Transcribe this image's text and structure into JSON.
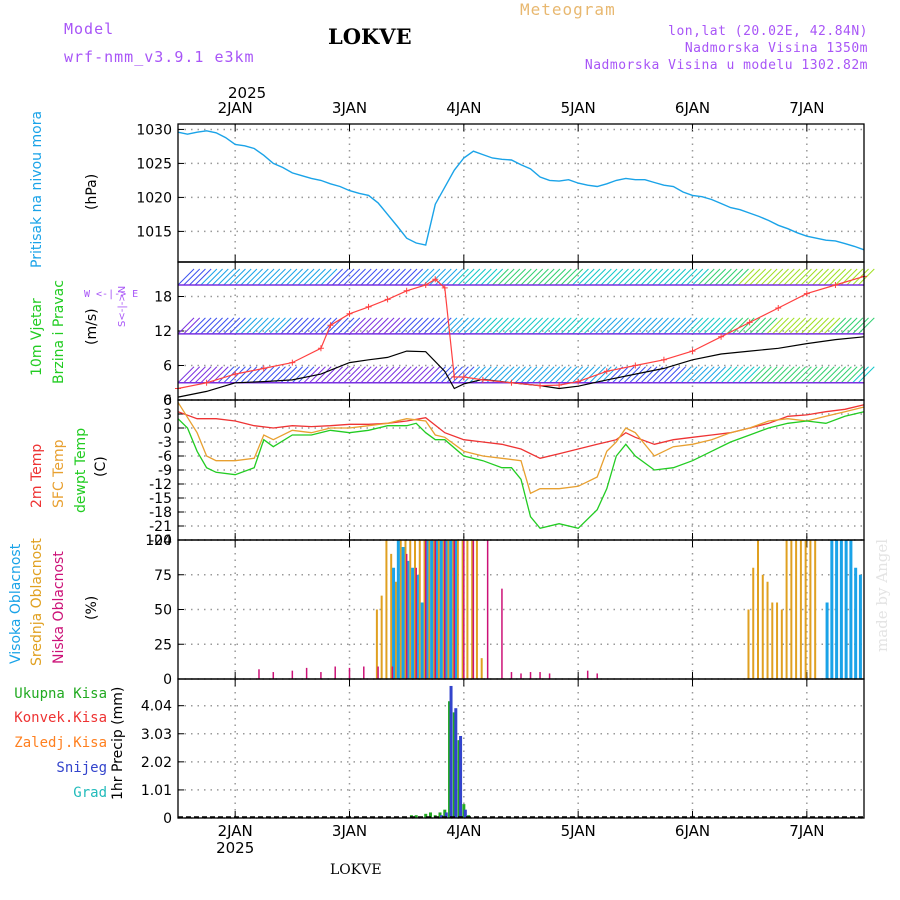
{
  "header": {
    "model_label": "Model",
    "model_name": "wrf-nmm_v3.9.1 e3km",
    "station": "LOKVE",
    "product": "Meteogram",
    "lonlat": "lon,lat (20.02E, 42.84N)",
    "altitude": "Nadmorska Visina 1350m",
    "model_altitude": "Nadmorska Visina u modelu 1302.82m",
    "year_top": "2025",
    "footer_station": "LOKVE",
    "watermark": "made by Angel"
  },
  "colors": {
    "pressure": "#1aa3e8",
    "wind_speed": "#000000",
    "gust": "#ff4040",
    "t2m": "#ee3333",
    "sfc": "#e8a030",
    "dew": "#22cc22",
    "cloud_high": "#1aa3e8",
    "cloud_mid": "#e0a020",
    "cloud_low": "#cc1177",
    "precip_total": "#22aa22",
    "precip_conv": "#ee3333",
    "precip_frz": "#ff8020",
    "snow": "#3344cc",
    "hail": "#22bbbb",
    "grid": "#999999",
    "title_purple": "#a855f7",
    "meteogram_orange": "#e8b870"
  },
  "chart_data": [
    {
      "type": "line",
      "panel": "pressure",
      "title": "Pritisak na nivou mora",
      "ylabel": "(hPa)",
      "ylim": [
        1010.5,
        1030.8
      ],
      "yticks": [
        1015,
        1020,
        1025,
        1030
      ],
      "x_unit": "hours since 2025-01-01 12UTC",
      "xlim": [
        0,
        144
      ],
      "x": [
        0,
        2,
        4,
        6,
        8,
        10,
        12,
        14,
        16,
        18,
        20,
        22,
        24,
        26,
        28,
        30,
        32,
        34,
        36,
        38,
        40,
        42,
        44,
        46,
        48,
        50,
        52,
        54,
        56,
        58,
        60,
        62,
        64,
        66,
        68,
        70,
        72,
        74,
        76,
        78,
        80,
        82,
        84,
        86,
        88,
        90,
        92,
        94,
        96,
        98,
        100,
        102,
        104,
        106,
        108,
        110,
        112,
        114,
        116,
        118,
        120,
        122,
        124,
        126,
        128,
        130,
        132,
        134,
        136,
        138,
        140,
        142,
        144
      ],
      "values": [
        1029.6,
        1029.3,
        1029.6,
        1029.8,
        1029.5,
        1028.8,
        1027.8,
        1027.6,
        1027.2,
        1026.2,
        1025.0,
        1024.4,
        1023.6,
        1023.2,
        1022.8,
        1022.5,
        1022.0,
        1021.6,
        1021.0,
        1020.6,
        1020.3,
        1019.2,
        1017.5,
        1015.8,
        1014.0,
        1013.3,
        1013.0,
        1019.0,
        1021.5,
        1024.0,
        1025.8,
        1026.8,
        1026.3,
        1025.8,
        1025.6,
        1025.5,
        1024.8,
        1024.2,
        1023.0,
        1022.5,
        1022.4,
        1022.6,
        1022.1,
        1021.8,
        1021.6,
        1022.0,
        1022.5,
        1022.8,
        1022.6,
        1022.6,
        1022.2,
        1021.8,
        1021.6,
        1020.8,
        1020.3,
        1020.1,
        1019.7,
        1019.1,
        1018.5,
        1018.2,
        1017.7,
        1017.2,
        1016.6,
        1015.9,
        1015.4,
        1014.8,
        1014.3,
        1014.0,
        1013.7,
        1013.6,
        1013.2,
        1012.8,
        1012.3
      ]
    },
    {
      "type": "line",
      "panel": "wind",
      "title": "10m Vjetar Brzina i Pravac",
      "ylabel": "(m/s)",
      "ylim": [
        0,
        24
      ],
      "yticks": [
        0,
        6,
        12,
        18
      ],
      "xlim": [
        0,
        144
      ],
      "direction_legend": "W <-|-> E",
      "series": [
        {
          "name": "Brzina",
          "x": [
            0,
            6,
            12,
            18,
            24,
            30,
            36,
            40,
            44,
            48,
            52,
            56,
            58,
            60,
            64,
            70,
            76,
            80,
            84,
            90,
            96,
            102,
            108,
            114,
            120,
            126,
            132,
            138,
            144
          ],
          "values": [
            0.5,
            1.5,
            3.0,
            3.2,
            3.5,
            4.5,
            6.5,
            7.0,
            7.4,
            8.5,
            8.4,
            5.0,
            2.0,
            2.8,
            3.6,
            3.0,
            2.5,
            2.0,
            2.4,
            3.5,
            4.5,
            5.5,
            7.0,
            8.0,
            8.5,
            9.0,
            9.8,
            10.5,
            11.0
          ]
        },
        {
          "name": "Udari",
          "x": [
            0,
            6,
            12,
            18,
            24,
            30,
            32,
            36,
            40,
            44,
            48,
            52,
            54,
            56,
            58,
            60,
            64,
            70,
            76,
            80,
            84,
            90,
            96,
            102,
            108,
            114,
            120,
            126,
            132,
            138,
            144
          ],
          "values": [
            2.0,
            3.0,
            4.5,
            5.5,
            6.5,
            9.0,
            13.0,
            15.0,
            16.2,
            17.5,
            19.0,
            20.0,
            21.0,
            19.5,
            4.0,
            4.0,
            3.5,
            3.0,
            2.5,
            2.6,
            3.2,
            5.0,
            6.0,
            7.0,
            8.5,
            11.0,
            13.5,
            16.0,
            18.5,
            20.0,
            21.5
          ]
        }
      ]
    },
    {
      "type": "line",
      "panel": "temperature",
      "ylabel": "(C)",
      "ylim": [
        -24,
        6
      ],
      "yticks": [
        6,
        3,
        0,
        -3,
        -6,
        -9,
        -12,
        -15,
        -18,
        -21,
        -24
      ],
      "xlim": [
        0,
        144
      ],
      "series": [
        {
          "name": "2m Temp",
          "x": [
            0,
            4,
            8,
            12,
            16,
            20,
            24,
            28,
            32,
            36,
            40,
            44,
            48,
            52,
            56,
            60,
            64,
            68,
            72,
            76,
            80,
            84,
            88,
            90,
            92,
            94,
            96,
            100,
            104,
            108,
            112,
            116,
            120,
            124,
            128,
            132,
            136,
            140,
            144
          ],
          "values": [
            3.5,
            2.0,
            2.0,
            1.5,
            0.5,
            0.0,
            0.5,
            0.3,
            0.5,
            0.8,
            0.8,
            1.0,
            1.5,
            2.2,
            -1.0,
            -2.5,
            -3.0,
            -3.5,
            -4.5,
            -6.5,
            -5.5,
            -4.5,
            -3.5,
            -3.0,
            -2.5,
            -1.0,
            -2.0,
            -3.5,
            -2.5,
            -2.0,
            -1.5,
            -1.0,
            0.0,
            1.0,
            2.5,
            2.8,
            3.5,
            4.0,
            5.0
          ]
        },
        {
          "name": "SFC Temp",
          "x": [
            0,
            4,
            6,
            8,
            12,
            16,
            18,
            20,
            24,
            28,
            32,
            36,
            40,
            44,
            48,
            52,
            54,
            56,
            60,
            64,
            68,
            72,
            74,
            76,
            80,
            84,
            88,
            90,
            92,
            94,
            96,
            100,
            104,
            108,
            112,
            116,
            120,
            124,
            128,
            132,
            136,
            140,
            144
          ],
          "values": [
            5.5,
            -1.0,
            -6.0,
            -7.0,
            -7.0,
            -6.5,
            -1.5,
            -2.5,
            -0.5,
            -1.0,
            0.0,
            0.0,
            0.5,
            1.0,
            2.0,
            1.5,
            -1.5,
            -2.0,
            -5.0,
            -6.0,
            -6.5,
            -7.0,
            -14.0,
            -13.0,
            -13.0,
            -12.5,
            -10.5,
            -5.0,
            -3.0,
            0.0,
            -1.0,
            -6.0,
            -4.0,
            -3.5,
            -2.5,
            -1.0,
            0.0,
            1.5,
            2.0,
            1.5,
            2.5,
            3.5,
            4.5
          ]
        },
        {
          "name": "dewpt Temp",
          "x": [
            0,
            2,
            4,
            6,
            8,
            12,
            16,
            18,
            20,
            24,
            28,
            32,
            36,
            40,
            44,
            48,
            50,
            52,
            54,
            56,
            60,
            64,
            68,
            70,
            72,
            74,
            76,
            80,
            84,
            88,
            90,
            92,
            94,
            96,
            100,
            104,
            108,
            112,
            116,
            120,
            124,
            128,
            132,
            136,
            140,
            144
          ],
          "values": [
            2.0,
            0.0,
            -5.0,
            -8.5,
            -9.5,
            -10.0,
            -8.5,
            -2.5,
            -4.0,
            -1.5,
            -1.5,
            -0.5,
            -1.0,
            -0.5,
            0.5,
            0.5,
            1.0,
            -1.0,
            -2.5,
            -2.5,
            -6.0,
            -7.0,
            -8.5,
            -8.5,
            -11.0,
            -19.0,
            -21.5,
            -20.5,
            -21.5,
            -17.5,
            -13.0,
            -6.0,
            -3.5,
            -6.0,
            -9.0,
            -8.5,
            -7.0,
            -5.0,
            -3.0,
            -1.5,
            0.0,
            1.0,
            1.5,
            1.0,
            2.5,
            3.5
          ]
        }
      ]
    },
    {
      "type": "bar",
      "panel": "clouds",
      "ylabel": "(%)",
      "ylim": [
        0,
        100
      ],
      "yticks": [
        0,
        25,
        50,
        75,
        100
      ],
      "xlim": [
        0,
        144
      ],
      "series": [
        {
          "name": "Visoka Oblacnost",
          "x": [
            45,
            46,
            47,
            48,
            49,
            50,
            51,
            52,
            53,
            54,
            55,
            56,
            57,
            58,
            59,
            60,
            61,
            62,
            63,
            135,
            136,
            137,
            138,
            139,
            140,
            141,
            142,
            143
          ],
          "values": [
            80,
            100,
            95,
            85,
            80,
            75,
            55,
            100,
            100,
            100,
            100,
            100,
            100,
            100,
            0,
            0,
            0,
            0,
            0,
            0,
            55,
            100,
            100,
            100,
            100,
            100,
            80,
            75
          ]
        },
        {
          "name": "Srednja Oblacnost",
          "x": [
            42,
            43,
            44,
            45,
            46,
            47,
            48,
            49,
            50,
            51,
            52,
            53,
            54,
            55,
            56,
            57,
            58,
            59,
            60,
            61,
            62,
            63,
            64,
            120,
            121,
            122,
            123,
            124,
            125,
            126,
            127,
            128,
            129,
            130,
            131,
            132,
            133,
            134
          ],
          "values": [
            50,
            60,
            100,
            90,
            70,
            100,
            100,
            100,
            100,
            100,
            100,
            100,
            100,
            100,
            100,
            100,
            100,
            100,
            100,
            100,
            100,
            100,
            15,
            50,
            80,
            100,
            75,
            70,
            55,
            55,
            50,
            100,
            100,
            100,
            100,
            100,
            100,
            100
          ]
        },
        {
          "name": "Niska Oblacnost",
          "x": [
            17,
            20,
            24,
            27,
            30,
            33,
            36,
            39,
            42,
            45,
            48,
            50,
            52,
            54,
            56,
            58,
            60,
            62,
            65,
            68,
            70,
            72,
            74,
            76,
            78,
            86,
            88
          ],
          "values": [
            7,
            5,
            6,
            8,
            5,
            9,
            8,
            9,
            9,
            9,
            90,
            80,
            100,
            100,
            100,
            100,
            100,
            100,
            100,
            65,
            5,
            4,
            5,
            5,
            4,
            6,
            4
          ]
        }
      ]
    },
    {
      "type": "bar",
      "panel": "precipitation",
      "ylabel": "1hr Precip (mm)",
      "ylim": [
        0,
        5.0
      ],
      "yticks": [
        0,
        1.01,
        2.02,
        3.03,
        4.04
      ],
      "xlim": [
        0,
        144
      ],
      "series": [
        {
          "name": "Ukupna Kisa",
          "x": [
            49,
            50,
            51,
            52,
            53,
            54,
            55,
            56,
            57,
            58,
            59,
            60,
            61
          ],
          "values": [
            0.1,
            0.1,
            0.05,
            0.15,
            0.2,
            0.1,
            0.2,
            0.3,
            4.2,
            3.8,
            2.8,
            0.5,
            0.1
          ]
        },
        {
          "name": "Konvek.Kisa",
          "x": [],
          "values": []
        },
        {
          "name": "Zaledj.Kisa",
          "x": [],
          "values": []
        },
        {
          "name": "Snijeg",
          "x": [
            55,
            56,
            57,
            58,
            59,
            60
          ],
          "values": [
            0.1,
            0.2,
            4.75,
            3.95,
            2.95,
            0.3
          ]
        },
        {
          "name": "Grad",
          "x": [],
          "values": []
        }
      ]
    }
  ],
  "time_axis": {
    "labels": [
      "2JAN",
      "3JAN",
      "4JAN",
      "5JAN",
      "6JAN",
      "7JAN"
    ],
    "bottom_year": "2025"
  },
  "panel_labels": {
    "pressure_title": "Pritisak na nivou mora",
    "pressure_unit": "(hPa)",
    "wind_title_1": "10m Vjetar",
    "wind_title_2": "Brzina i Pravac",
    "wind_unit": "(m/s)",
    "wind_dir_ns": "S<-|->N",
    "wind_dir_we": "W <-|-> E",
    "temp_1": "2m Temp",
    "temp_2": "SFC Temp",
    "temp_3": "dewpt Temp",
    "temp_unit": "(C)",
    "cloud_1": "Visoka Oblacnost",
    "cloud_2": "Srednja Oblacnost",
    "cloud_3": "Niska Oblacnost",
    "cloud_unit": "(%)",
    "precip_1": "Ukupna Kisa",
    "precip_2": "Konvek.Kisa",
    "precip_3": "Zaledj.Kisa",
    "precip_4": "Snijeg",
    "precip_5": "Grad",
    "precip_unit": "1hr Precip (mm)"
  }
}
